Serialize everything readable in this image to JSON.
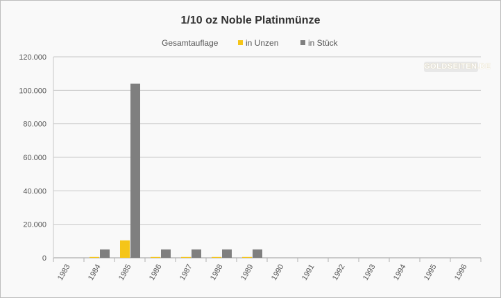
{
  "chart_data": {
    "type": "bar",
    "title": "1/10 oz Noble Platinmünze",
    "legend_title": "Gesamtauflage",
    "legend_position": "top",
    "categories": [
      "1983",
      "1984",
      "1985",
      "1986",
      "1987",
      "1988",
      "1989",
      "1990",
      "1991",
      "1992",
      "1993",
      "1994",
      "1995",
      "1996"
    ],
    "series": [
      {
        "name": "in Unzen",
        "color": "#f5c518",
        "values": [
          0,
          500,
          10400,
          500,
          500,
          500,
          500,
          0,
          0,
          0,
          0,
          0,
          0,
          0
        ]
      },
      {
        "name": "in Stück",
        "color": "#7f7f7f",
        "values": [
          0,
          5000,
          104000,
          5000,
          5000,
          5000,
          5000,
          0,
          0,
          0,
          0,
          0,
          0,
          0
        ]
      }
    ],
    "ylim": [
      0,
      120000
    ],
    "yticks": [
      "0",
      "20.000",
      "40.000",
      "60.000",
      "80.000",
      "100.000",
      "120.000"
    ],
    "grid": true
  },
  "watermark": "GOLDSEITEN.DE"
}
